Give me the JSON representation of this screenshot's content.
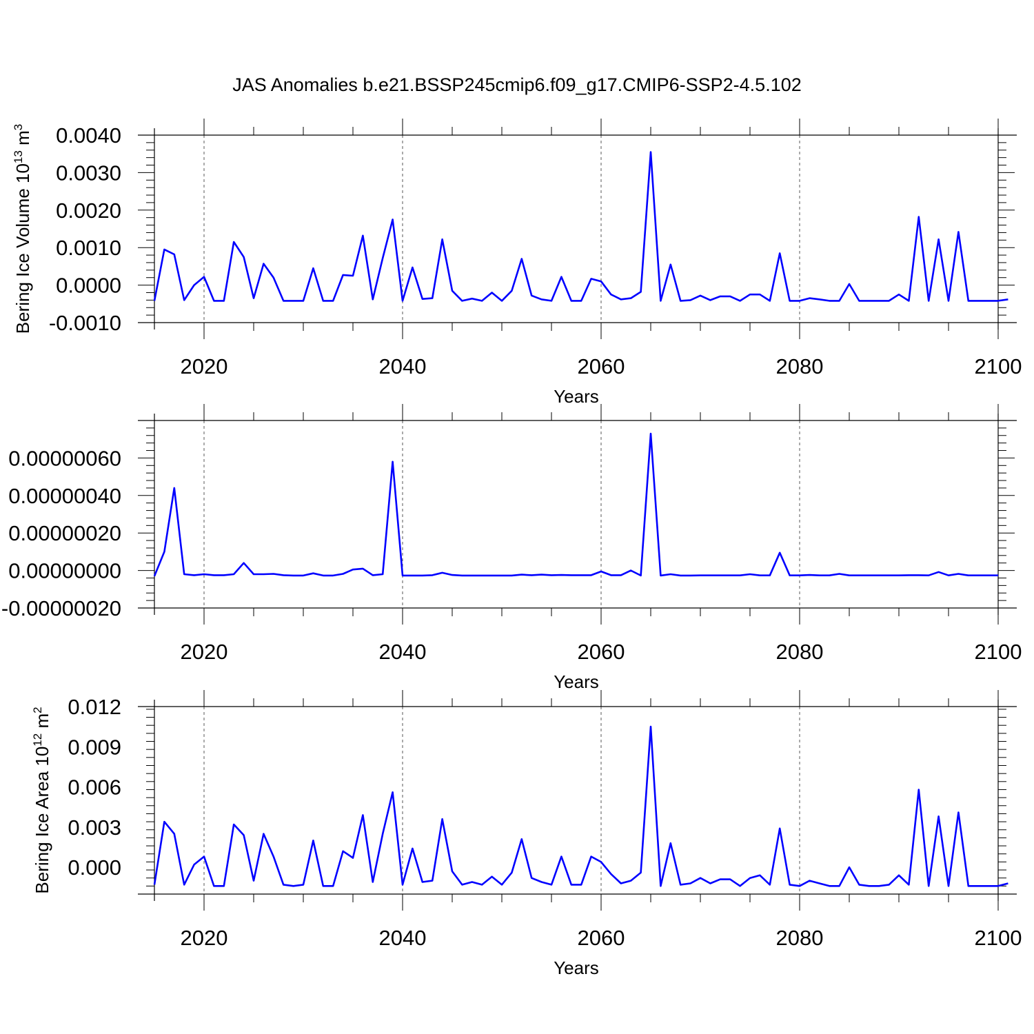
{
  "figure": {
    "title": "JAS Anomalies b.e21.BSSP245cmip6.f09_g17.CMIP6-SSP2-4.5.102",
    "line_color": "#0000ff"
  },
  "chart_data": [
    {
      "type": "line",
      "ylabel": "Bering Ice Volume 10",
      "ylabel_sup": "13",
      "ylabel_unit": " m",
      "ylabel_unit_sup": "3",
      "xlabel": "Years",
      "xlim": [
        2015,
        2100
      ],
      "ylim": [
        -0.001,
        0.004
      ],
      "x_ticks": [
        2020,
        2040,
        2060,
        2080,
        2100
      ],
      "x_tick_labels": [
        "2020",
        "2040",
        "2060",
        "2080",
        "2100"
      ],
      "y_ticks": [
        -0.001,
        0.0,
        0.001,
        0.002,
        0.003,
        0.004
      ],
      "y_tick_labels": [
        "-0.0010",
        "0.0000",
        "0.0010",
        "0.0020",
        "0.0030",
        "0.0040"
      ],
      "grid": "vertical dashed at major x ticks",
      "series": [
        {
          "x_start": 2015,
          "values": [
            -0.00042,
            0.00095,
            0.00082,
            -0.0004,
            0.0,
            0.00022,
            -0.00042,
            -0.00042,
            0.00115,
            0.00075,
            -0.00035,
            0.00057,
            0.0002,
            -0.00042,
            -0.00042,
            -0.00042,
            0.00045,
            -0.00042,
            -0.00042,
            0.00027,
            0.00025,
            0.00132,
            -0.00038,
            0.00072,
            0.00175,
            -0.00042,
            0.00047,
            -0.00037,
            -0.00035,
            0.00122,
            -0.00015,
            -0.00042,
            -0.00036,
            -0.00042,
            -0.0002,
            -0.00042,
            -0.00015,
            0.0007,
            -0.00028,
            -0.00038,
            -0.00042,
            0.00022,
            -0.00042,
            -0.00042,
            0.00017,
            0.0001,
            -0.00025,
            -0.00038,
            -0.00035,
            -0.00018,
            0.00355,
            -0.00042,
            0.00055,
            -0.00042,
            -0.0004,
            -0.00028,
            -0.0004,
            -0.0003,
            -0.0003,
            -0.00042,
            -0.00025,
            -0.00025,
            -0.00042,
            0.00085,
            -0.00042,
            -0.00042,
            -0.00035,
            -0.00038,
            -0.00042,
            -0.00042,
            3e-05,
            -0.00042,
            -0.00042,
            -0.00042,
            -0.00042,
            -0.00025,
            -0.00042,
            0.00182,
            -0.00042,
            0.00122,
            -0.00042,
            0.00142,
            -0.00042,
            -0.00042,
            -0.00042,
            -0.00042,
            -0.00038
          ]
        }
      ]
    },
    {
      "type": "line",
      "ylabel": "",
      "xlabel": "Years",
      "xlim": [
        2015,
        2100
      ],
      "ylim": [
        -2e-07,
        8e-07
      ],
      "x_ticks": [
        2020,
        2040,
        2060,
        2080,
        2100
      ],
      "x_tick_labels": [
        "2020",
        "2040",
        "2060",
        "2080",
        "2100"
      ],
      "y_ticks": [
        -2e-07,
        0.0,
        2e-07,
        4e-07,
        6e-07
      ],
      "y_tick_labels": [
        "-0.00000020",
        "0.00000000",
        "0.00000020",
        "0.00000040",
        "0.00000060"
      ],
      "grid": "vertical dashed at major x ticks",
      "series": [
        {
          "x_start": 2015,
          "values": [
            -3e-08,
            1e-07,
            4.4e-07,
            -2e-08,
            -2.5e-08,
            -2e-08,
            -2.5e-08,
            -2.5e-08,
            -2e-08,
            4e-08,
            -2e-08,
            -2e-08,
            -1.8e-08,
            -2.5e-08,
            -2.7e-08,
            -2.7e-08,
            -1.5e-08,
            -2.7e-08,
            -2.7e-08,
            -1.8e-08,
            5e-09,
            1e-08,
            -2.5e-08,
            -2e-08,
            5.8e-07,
            -2.7e-08,
            -2.7e-08,
            -2.7e-08,
            -2.5e-08,
            -1.2e-08,
            -2.4e-08,
            -2.7e-08,
            -2.7e-08,
            -2.7e-08,
            -2.7e-08,
            -2.7e-08,
            -2.7e-08,
            -2.2e-08,
            -2.5e-08,
            -2.2e-08,
            -2.5e-08,
            -2.4e-08,
            -2.5e-08,
            -2.5e-08,
            -2.5e-08,
            -5e-09,
            -2.5e-08,
            -2.5e-08,
            0.0,
            -2.7e-08,
            7.3e-07,
            -2.7e-08,
            -2e-08,
            -2.7e-08,
            -2.7e-08,
            -2.6e-08,
            -2.6e-08,
            -2.6e-08,
            -2.6e-08,
            -2.6e-08,
            -2e-08,
            -2.6e-08,
            -2.6e-08,
            9.5e-08,
            -2.6e-08,
            -2.6e-08,
            -2.4e-08,
            -2.6e-08,
            -2.6e-08,
            -1.8e-08,
            -2.6e-08,
            -2.6e-08,
            -2.6e-08,
            -2.6e-08,
            -2.6e-08,
            -2.6e-08,
            -2.5e-08,
            -2.5e-08,
            -2.6e-08,
            -8e-09,
            -2.6e-08,
            -1.8e-08,
            -2.6e-08,
            -2.6e-08,
            -2.6e-08,
            -2.6e-08
          ]
        }
      ]
    },
    {
      "type": "line",
      "ylabel": "Bering Ice Area 10",
      "ylabel_sup": "12",
      "ylabel_unit": " m",
      "ylabel_unit_sup": "2",
      "xlabel": "Years",
      "xlim": [
        2015,
        2100
      ],
      "ylim": [
        -0.002,
        0.012
      ],
      "x_ticks": [
        2020,
        2040,
        2060,
        2080,
        2100
      ],
      "x_tick_labels": [
        "2020",
        "2040",
        "2060",
        "2080",
        "2100"
      ],
      "y_ticks": [
        0.0,
        0.003,
        0.006,
        0.009,
        0.012
      ],
      "y_tick_labels": [
        "0.000",
        "0.003",
        "0.006",
        "0.009",
        "0.012"
      ],
      "grid": "vertical dashed at major x ticks",
      "series": [
        {
          "x_start": 2015,
          "values": [
            -0.0013,
            0.0034,
            0.0025,
            -0.0013,
            0.0002,
            0.0008,
            -0.0014,
            -0.0014,
            0.0032,
            0.0024,
            -0.001,
            0.0025,
            0.0008,
            -0.0013,
            -0.0014,
            -0.0013,
            0.002,
            -0.0014,
            -0.0014,
            0.0012,
            0.0007,
            0.0039,
            -0.0011,
            0.0025,
            0.0056,
            -0.0013,
            0.0014,
            -0.0011,
            -0.001,
            0.0036,
            -0.0003,
            -0.0013,
            -0.0011,
            -0.0013,
            -0.0007,
            -0.0013,
            -0.0004,
            0.0021,
            -0.0008,
            -0.0011,
            -0.0013,
            0.0008,
            -0.0013,
            -0.0013,
            0.0008,
            0.0004,
            -0.0005,
            -0.0012,
            -0.001,
            -0.0004,
            0.0105,
            -0.0014,
            0.0018,
            -0.0013,
            -0.0012,
            -0.0008,
            -0.0012,
            -0.0009,
            -0.0009,
            -0.0014,
            -0.0008,
            -0.0006,
            -0.0013,
            0.0029,
            -0.0013,
            -0.0014,
            -0.001,
            -0.0012,
            -0.0014,
            -0.0014,
            0.0,
            -0.0013,
            -0.0014,
            -0.0014,
            -0.0013,
            -0.0006,
            -0.0013,
            0.0058,
            -0.0014,
            0.0038,
            -0.0014,
            0.0041,
            -0.0014,
            -0.0014,
            -0.0014,
            -0.0014,
            -0.0012
          ]
        }
      ]
    }
  ]
}
